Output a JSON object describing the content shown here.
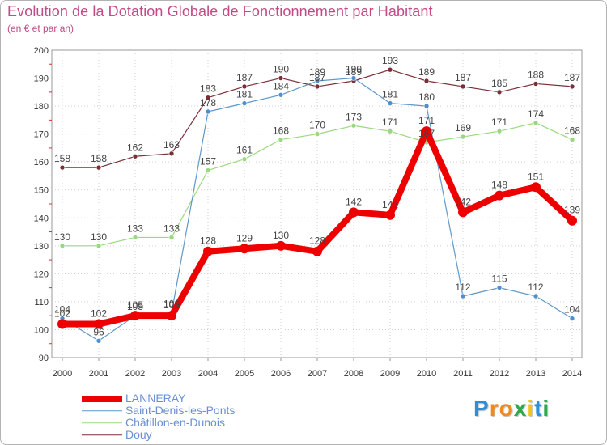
{
  "header": {
    "title": "Evolution de la Dotation Globale de Fonctionnement par Habitant",
    "subtitle": "(en € et par an)"
  },
  "logo": {
    "text": "Proxiti",
    "letters": [
      "P",
      "r",
      "o",
      "x",
      "i",
      "t",
      "i"
    ],
    "colors": [
      "#2d8fd8",
      "#f08a1c",
      "#f08a1c",
      "#2da84a",
      "#f0c51c",
      "#2d8fd8",
      "#2da84a"
    ]
  },
  "chart_data": {
    "type": "line",
    "title": "Evolution de la Dotation Globale de Fonctionnement par Habitant",
    "subtitle": "(en € et par an)",
    "xlabel": "",
    "ylabel": "",
    "categories": [
      "2000",
      "2001",
      "2002",
      "2003",
      "2004",
      "2005",
      "2006",
      "2007",
      "2008",
      "2009",
      "2010",
      "2011",
      "2012",
      "2013",
      "2014"
    ],
    "ylim": [
      90,
      200
    ],
    "yticks": [
      90,
      100,
      110,
      120,
      130,
      140,
      150,
      160,
      170,
      180,
      190,
      200
    ],
    "grid": true,
    "legend_position": "bottom-left",
    "series": [
      {
        "name": "Douy",
        "color": "#7a2e36",
        "markerColor": "#7a2e36",
        "width": 1.2,
        "markerR": 3,
        "values": [
          158,
          158,
          162,
          163,
          183,
          187,
          190,
          187,
          189,
          193,
          189,
          187,
          185,
          188,
          187
        ],
        "labels": [
          "158",
          "158",
          "162",
          "163",
          "183",
          "187",
          "190",
          "187",
          "189",
          "193",
          "189",
          "187",
          "185",
          "188",
          "187"
        ]
      },
      {
        "name": "Châtillon-en-Dunois",
        "color": "#9ad880",
        "markerColor": "#9ad880",
        "width": 1.2,
        "markerR": 3,
        "values": [
          130,
          130,
          133,
          133,
          157,
          161,
          168,
          170,
          173,
          171,
          167,
          169,
          171,
          174,
          168
        ],
        "labels": [
          "130",
          "130",
          "133",
          "133",
          "157",
          "161",
          "168",
          "170",
          "173",
          "171",
          "167",
          "169",
          "171",
          "174",
          "168"
        ]
      },
      {
        "name": "Saint-Denis-les-Ponts",
        "color": "#5e97c9",
        "markerColor": "#4f8fd0",
        "width": 1.2,
        "markerR": 3,
        "values": [
          104,
          96,
          105,
          106,
          178,
          181,
          184,
          189,
          190,
          181,
          180,
          112,
          115,
          112,
          104
        ],
        "labels": [
          "104",
          "96",
          "105",
          "106",
          "178",
          "181",
          "184",
          "189",
          "190",
          "181",
          "180",
          "112",
          "115",
          "112",
          "104"
        ]
      },
      {
        "name": "LANNERAY",
        "color": "#ee0000",
        "markerColor": "#ee0000",
        "width": 8,
        "markerR": 6,
        "values": [
          102,
          102,
          105,
          105,
          128,
          129,
          130,
          128,
          142,
          141,
          171,
          142,
          148,
          151,
          139
        ],
        "labels": [
          "102",
          "102",
          "105",
          "105",
          "128",
          "129",
          "130",
          "128",
          "142",
          "141",
          "171",
          "142",
          "148",
          "151",
          "139"
        ]
      }
    ],
    "legend": [
      {
        "name": "LANNERAY",
        "color": "#ee0000",
        "thickness": 8
      },
      {
        "name": "Saint-Denis-les-Ponts",
        "color": "#5e97c9",
        "thickness": 1.5
      },
      {
        "name": "Châtillon-en-Dunois",
        "color": "#9ad880",
        "thickness": 1.5
      },
      {
        "name": "Douy",
        "color": "#7a2e36",
        "thickness": 1.5
      }
    ]
  }
}
